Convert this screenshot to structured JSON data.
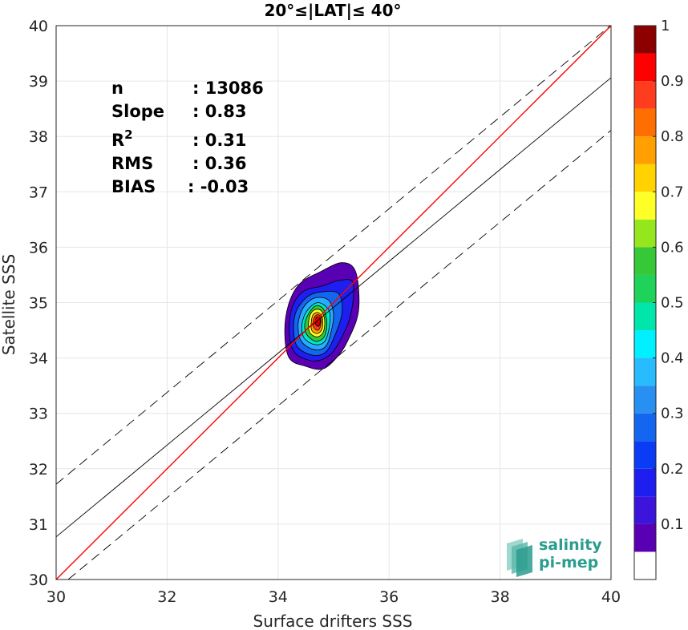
{
  "chart_data": {
    "type": "heatmap",
    "title": "20°≤|LAT|≤ 40°",
    "xlabel": "Surface drifters SSS",
    "ylabel": "Satellite SSS",
    "xlim": [
      30,
      40
    ],
    "ylim": [
      30,
      40
    ],
    "xticks": [
      "30",
      "32",
      "34",
      "36",
      "38",
      "40"
    ],
    "yticks": [
      "30",
      "31",
      "32",
      "33",
      "34",
      "35",
      "36",
      "37",
      "38",
      "39",
      "40"
    ],
    "grid": true,
    "stats": [
      {
        "label": "n",
        "value": ": 13086"
      },
      {
        "label": "Slope",
        "value": ": 0.83"
      },
      {
        "label": "R",
        "sup": "2",
        "value": ": 0.31"
      },
      {
        "label": "RMS",
        "value": ": 0.36"
      },
      {
        "label": "BIAS",
        "value": ": -0.03"
      }
    ],
    "lines": {
      "identity": {
        "color": "#ff0000",
        "x": [
          30,
          40
        ],
        "y": [
          30,
          40
        ]
      },
      "fit": {
        "color": "#000000",
        "x": [
          30,
          40
        ],
        "y": [
          30.77,
          39.06
        ]
      },
      "upper": {
        "color": "#000000",
        "dash": true,
        "x": [
          30,
          40
        ],
        "y": [
          31.72,
          40.01
        ]
      },
      "lower": {
        "color": "#000000",
        "dash": true,
        "x": [
          30,
          40
        ],
        "y": [
          29.82,
          38.11
        ]
      }
    },
    "density_peak": {
      "x": 34.72,
      "y": 34.68
    },
    "density_contours": [
      {
        "level": 0.05,
        "color": "#5a00b4",
        "points": [
          [
            34.2,
            34.0
          ],
          [
            34.5,
            33.85
          ],
          [
            34.8,
            33.8
          ],
          [
            35.05,
            34.0
          ],
          [
            35.25,
            34.3
          ],
          [
            35.45,
            34.85
          ],
          [
            35.4,
            35.55
          ],
          [
            35.15,
            35.72
          ],
          [
            34.75,
            35.55
          ],
          [
            34.4,
            35.35
          ],
          [
            34.2,
            35.0
          ],
          [
            34.12,
            34.5
          ]
        ]
      },
      {
        "level": 0.15,
        "color": "#1e1ef0",
        "points": [
          [
            34.3,
            34.1
          ],
          [
            34.6,
            33.95
          ],
          [
            34.85,
            34.0
          ],
          [
            35.05,
            34.2
          ],
          [
            35.3,
            34.75
          ],
          [
            35.35,
            35.35
          ],
          [
            35.1,
            35.4
          ],
          [
            34.8,
            35.3
          ],
          [
            34.45,
            35.2
          ],
          [
            34.25,
            34.9
          ],
          [
            34.2,
            34.45
          ]
        ]
      },
      {
        "level": 0.25,
        "color": "#1465f0",
        "points": [
          [
            34.35,
            34.2
          ],
          [
            34.62,
            34.05
          ],
          [
            34.85,
            34.1
          ],
          [
            35.0,
            34.35
          ],
          [
            35.15,
            34.8
          ],
          [
            35.1,
            35.15
          ],
          [
            34.85,
            35.2
          ],
          [
            34.55,
            35.12
          ],
          [
            34.33,
            34.85
          ],
          [
            34.28,
            34.5
          ]
        ]
      },
      {
        "level": 0.35,
        "color": "#28aaff",
        "points": [
          [
            34.42,
            34.3
          ],
          [
            34.65,
            34.15
          ],
          [
            34.85,
            34.2
          ],
          [
            34.95,
            34.45
          ],
          [
            35.0,
            34.8
          ],
          [
            34.9,
            35.05
          ],
          [
            34.65,
            35.08
          ],
          [
            34.45,
            34.9
          ],
          [
            34.36,
            34.6
          ]
        ]
      },
      {
        "level": 0.45,
        "color": "#00e6c8",
        "points": [
          [
            34.47,
            34.36
          ],
          [
            34.67,
            34.24
          ],
          [
            34.84,
            34.3
          ],
          [
            34.92,
            34.55
          ],
          [
            34.92,
            34.85
          ],
          [
            34.72,
            35.0
          ],
          [
            34.52,
            34.85
          ],
          [
            34.43,
            34.6
          ]
        ]
      },
      {
        "level": 0.55,
        "color": "#37c837",
        "points": [
          [
            34.52,
            34.42
          ],
          [
            34.68,
            34.3
          ],
          [
            34.83,
            34.38
          ],
          [
            34.88,
            34.62
          ],
          [
            34.82,
            34.88
          ],
          [
            34.68,
            34.94
          ],
          [
            34.55,
            34.8
          ],
          [
            34.48,
            34.6
          ]
        ]
      },
      {
        "level": 0.65,
        "color": "#ffff28",
        "points": [
          [
            34.56,
            34.48
          ],
          [
            34.69,
            34.38
          ],
          [
            34.81,
            34.46
          ],
          [
            34.84,
            34.68
          ],
          [
            34.77,
            34.86
          ],
          [
            34.64,
            34.86
          ],
          [
            34.56,
            34.72
          ]
        ]
      },
      {
        "level": 0.75,
        "color": "#ffa000",
        "points": [
          [
            34.6,
            34.52
          ],
          [
            34.7,
            34.44
          ],
          [
            34.79,
            34.52
          ],
          [
            34.8,
            34.72
          ],
          [
            34.72,
            34.82
          ],
          [
            34.62,
            34.76
          ]
        ]
      },
      {
        "level": 0.85,
        "color": "#ff3c1e",
        "points": [
          [
            34.64,
            34.56
          ],
          [
            34.72,
            34.5
          ],
          [
            34.77,
            34.6
          ],
          [
            34.77,
            34.74
          ],
          [
            34.7,
            34.78
          ],
          [
            34.64,
            34.7
          ]
        ]
      },
      {
        "level": 0.95,
        "color": "#c80000",
        "points": [
          [
            34.68,
            34.6
          ],
          [
            34.73,
            34.57
          ],
          [
            34.76,
            34.64
          ],
          [
            34.75,
            34.72
          ],
          [
            34.7,
            34.74
          ],
          [
            34.67,
            34.68
          ]
        ]
      }
    ],
    "colorbar": {
      "ticks": [
        "0.1",
        "0.2",
        "0.3",
        "0.4",
        "0.5",
        "0.6",
        "0.7",
        "0.8",
        "0.9",
        "1"
      ],
      "range": [
        0,
        1
      ],
      "levels": [
        {
          "from": 0.0,
          "to": 0.05,
          "color": "#ffffff"
        },
        {
          "from": 0.05,
          "to": 0.1,
          "color": "#5a00b4"
        },
        {
          "from": 0.1,
          "to": 0.15,
          "color": "#3c14dc"
        },
        {
          "from": 0.15,
          "to": 0.2,
          "color": "#1e1ef0"
        },
        {
          "from": 0.2,
          "to": 0.25,
          "color": "#0a3cf5"
        },
        {
          "from": 0.25,
          "to": 0.3,
          "color": "#1465f0"
        },
        {
          "from": 0.3,
          "to": 0.35,
          "color": "#2890f0"
        },
        {
          "from": 0.35,
          "to": 0.4,
          "color": "#28bcff"
        },
        {
          "from": 0.4,
          "to": 0.45,
          "color": "#00f0ff"
        },
        {
          "from": 0.45,
          "to": 0.5,
          "color": "#00e6aa"
        },
        {
          "from": 0.5,
          "to": 0.55,
          "color": "#1ed25a"
        },
        {
          "from": 0.55,
          "to": 0.6,
          "color": "#37c837"
        },
        {
          "from": 0.6,
          "to": 0.65,
          "color": "#96e61e"
        },
        {
          "from": 0.65,
          "to": 0.7,
          "color": "#ffff28"
        },
        {
          "from": 0.7,
          "to": 0.75,
          "color": "#ffd200"
        },
        {
          "from": 0.75,
          "to": 0.8,
          "color": "#ffa000"
        },
        {
          "from": 0.8,
          "to": 0.85,
          "color": "#ff6e00"
        },
        {
          "from": 0.85,
          "to": 0.9,
          "color": "#ff3c1e"
        },
        {
          "from": 0.9,
          "to": 0.95,
          "color": "#ff0000"
        },
        {
          "from": 0.95,
          "to": 1.0,
          "color": "#8c0000"
        }
      ]
    }
  },
  "logo": {
    "line1": "salinity",
    "line2": "pi-mep"
  },
  "colors": {
    "grid": "#e6e6e6",
    "axis": "#262626",
    "logo_teal": "#2a9d8f"
  }
}
